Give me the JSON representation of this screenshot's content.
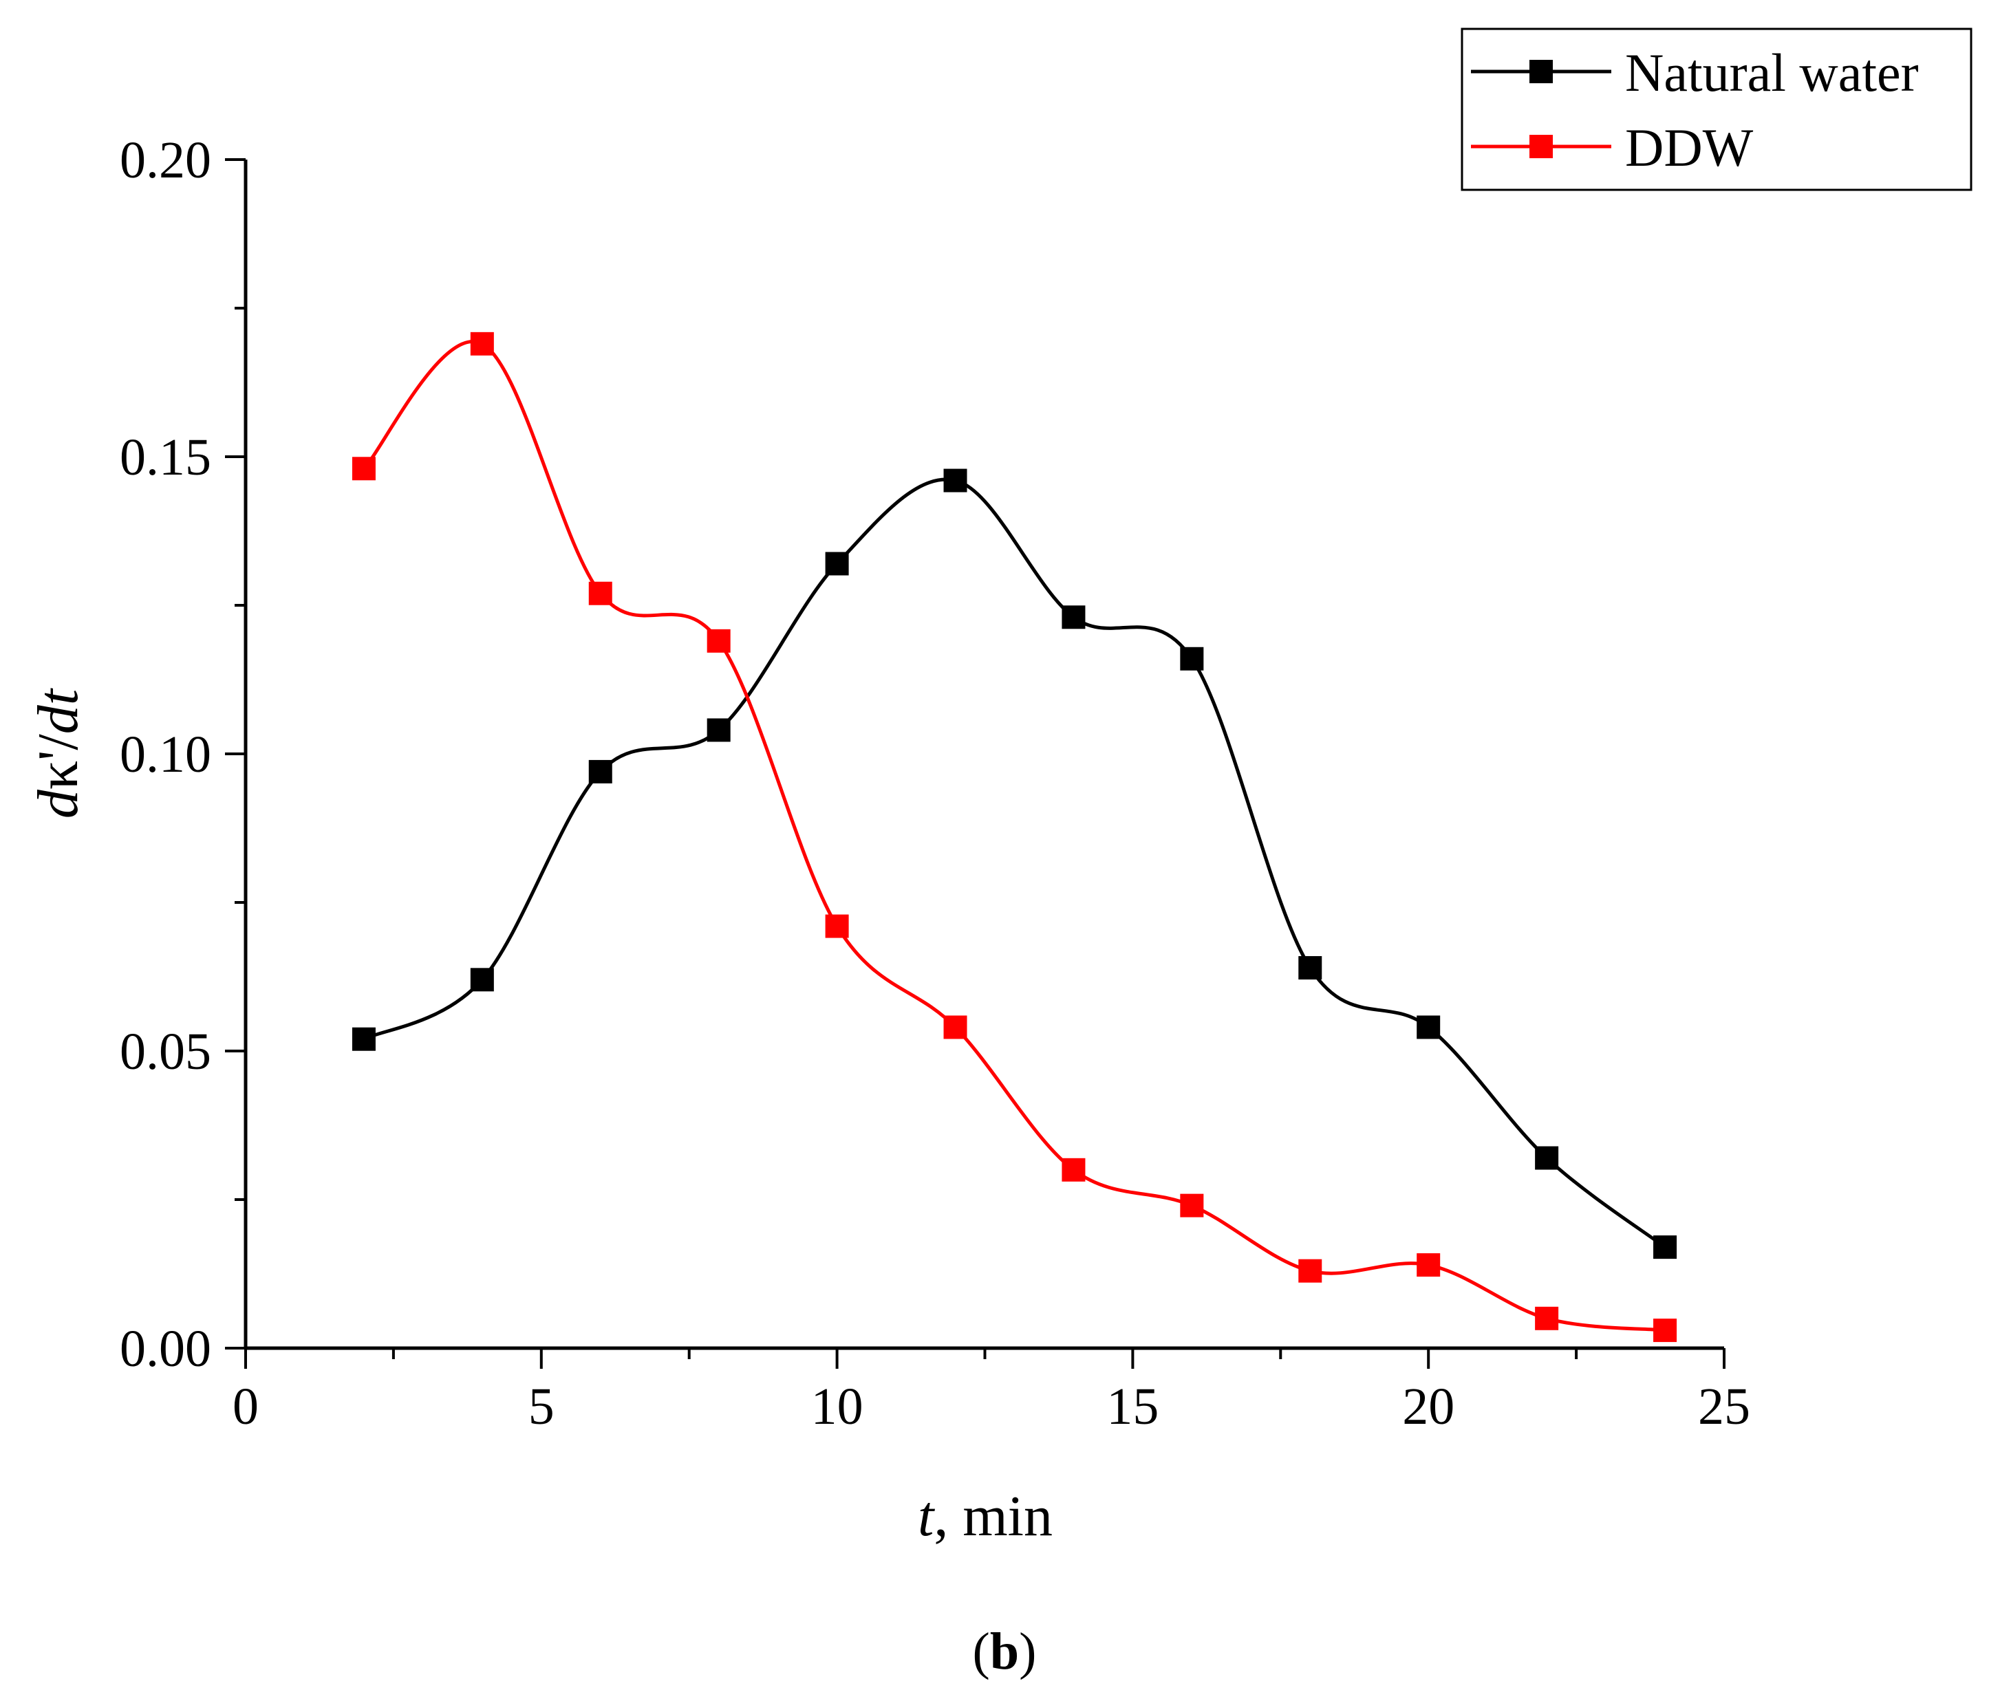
{
  "chart_data": {
    "type": "line",
    "title": "",
    "xlabel": "t, min",
    "xlabel_var": "t",
    "xlabel_unit": ", min",
    "ylabel": "dκ'/dt",
    "ylabel_parts": [
      "d",
      "κ'/",
      "dt"
    ],
    "xlim": [
      0,
      25
    ],
    "ylim": [
      0,
      0.2
    ],
    "xticks": [
      0,
      5,
      10,
      15,
      20,
      25
    ],
    "xtick_labels": [
      "0",
      "5",
      "10",
      "15",
      "20",
      "25"
    ],
    "yticks": [
      0,
      0.05,
      0.1,
      0.15,
      0.2
    ],
    "ytick_labels": [
      "0.00",
      "0.05",
      "0.10",
      "0.15",
      "0.20"
    ],
    "grid": false,
    "legend_position": "top-right",
    "panel_label": "b",
    "x": [
      2,
      4,
      6,
      8,
      10,
      12,
      14,
      16,
      18,
      20,
      22,
      24
    ],
    "series": [
      {
        "name": "Natural water",
        "color": "#000000",
        "values": [
          0.052,
          0.062,
          0.097,
          0.104,
          0.132,
          0.146,
          0.123,
          0.116,
          0.064,
          0.054,
          0.032,
          0.017
        ]
      },
      {
        "name": "DDW",
        "color": "#ff0000",
        "values": [
          0.148,
          0.169,
          0.127,
          0.119,
          0.071,
          0.054,
          0.03,
          0.024,
          0.013,
          0.014,
          0.005,
          0.003
        ]
      }
    ]
  }
}
